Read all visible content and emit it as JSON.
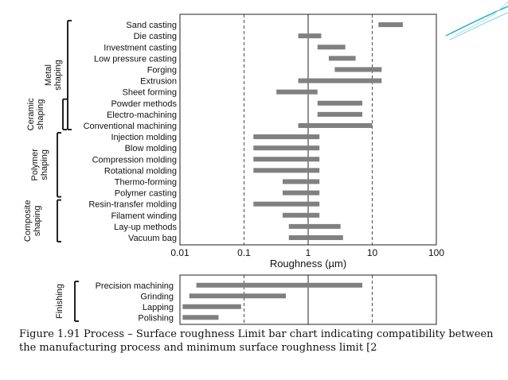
{
  "caption": "Figure 1.91 Process – Surface roughness Limit bar chart indicating compatibility between the manufacturing process and minimum surface roughness limit [2",
  "colors": {
    "bar": "#808080",
    "accent": "#2fb3c9",
    "axis": "#222222",
    "background": "#ffffff"
  },
  "chart_data": [
    {
      "type": "bar",
      "orientation": "horizontal",
      "xscale": "log",
      "xlim": [
        0.01,
        100
      ],
      "xticks": [
        "0.01",
        "0.1",
        "1",
        "10",
        "100"
      ],
      "xlabel": "Roughness (µm)",
      "grid": "dashed vertical lines at 0.1 and 10, solid line at 1",
      "categories": [
        "Sand casting",
        "Die casting",
        "Investment casting",
        "Low pressure casting",
        "Forging",
        "Extrusion",
        "Sheet forming",
        "Powder methods",
        "Electro-machining",
        "Conventional machining",
        "Injection molding",
        "Blow molding",
        "Compression molding",
        "Rotational molding",
        "Thermo-forming",
        "Polymer casting",
        "Resin-transfer molding",
        "Filament winding",
        "Lay-up methods",
        "Vacuum bag"
      ],
      "ranges": [
        [
          12.5,
          30
        ],
        [
          0.7,
          1.6
        ],
        [
          1.4,
          3.8
        ],
        [
          2.1,
          5.5
        ],
        [
          2.6,
          14
        ],
        [
          0.7,
          14
        ],
        [
          0.32,
          1.4
        ],
        [
          1.4,
          7
        ],
        [
          1.4,
          7
        ],
        [
          0.7,
          10
        ],
        [
          0.14,
          1.5
        ],
        [
          0.14,
          1.5
        ],
        [
          0.14,
          1.5
        ],
        [
          0.14,
          1.5
        ],
        [
          0.4,
          1.5
        ],
        [
          0.4,
          1.5
        ],
        [
          0.14,
          1.5
        ],
        [
          0.4,
          1.5
        ],
        [
          0.5,
          3.2
        ],
        [
          0.5,
          3.5
        ]
      ],
      "groups": [
        {
          "label": "Metal shaping",
          "from": 0,
          "to": 9
        },
        {
          "label": "Ceramic shaping",
          "from": 7,
          "to": 9
        },
        {
          "label": "Polymer shaping",
          "from": 10,
          "to": 15
        },
        {
          "label": "Composite shaping",
          "from": 16,
          "to": 19
        }
      ]
    },
    {
      "type": "bar",
      "orientation": "horizontal",
      "xscale": "log",
      "xlim": [
        0.01,
        100
      ],
      "categories": [
        "Precision machining",
        "Grinding",
        "Lapping",
        "Polishing"
      ],
      "ranges": [
        [
          0.018,
          7
        ],
        [
          0.014,
          0.45
        ],
        [
          0.011,
          0.09
        ],
        [
          0.011,
          0.04
        ]
      ],
      "groups": [
        {
          "label": "Finishing",
          "from": 0,
          "to": 3
        }
      ]
    }
  ]
}
